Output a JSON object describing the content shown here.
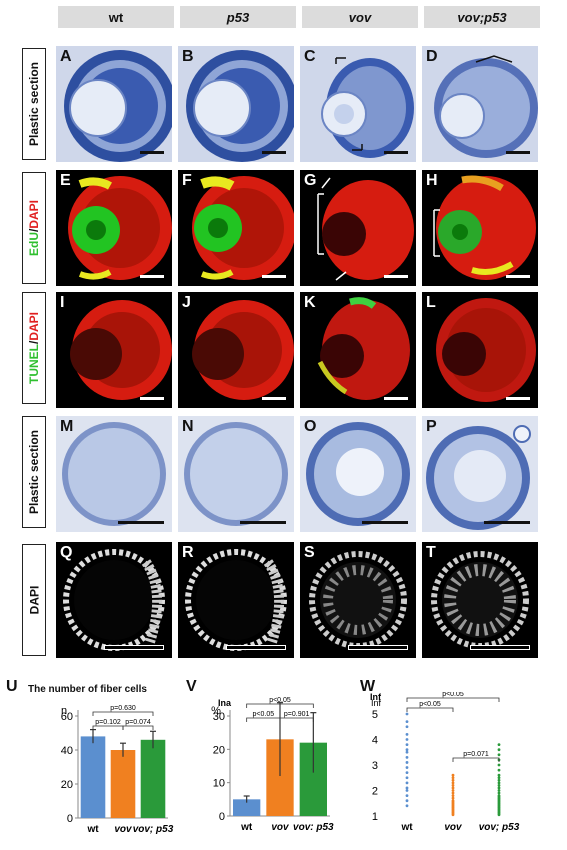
{
  "columns": [
    {
      "label": "wt",
      "italic": false
    },
    {
      "label": "p53",
      "italic": true
    },
    {
      "label": "vov",
      "italic": true
    },
    {
      "label": "vov;p53",
      "italic": true
    }
  ],
  "rows": [
    {
      "label": "Plastic section"
    },
    {
      "label_parts": [
        "EdU",
        "/",
        "DAPI"
      ]
    },
    {
      "label_parts": [
        "TUNEL",
        "/",
        "DAPI"
      ]
    },
    {
      "label": "Plastic section"
    },
    {
      "label": "DAPI"
    }
  ],
  "panels": [
    "A",
    "B",
    "C",
    "D",
    "E",
    "F",
    "G",
    "H",
    "I",
    "J",
    "K",
    "L",
    "M",
    "N",
    "O",
    "P",
    "Q",
    "R",
    "S",
    "T"
  ],
  "label_colors": {
    "edu": "#2fbf2f",
    "tunel": "#2fbf2f",
    "dapi": "#e02020"
  },
  "chart_data": [
    {
      "panel": "U",
      "type": "bar",
      "title": "The number of fiber cells",
      "ylabel": "n",
      "categories": [
        "wt",
        "vov",
        "vov; p53"
      ],
      "values": [
        48,
        40,
        46
      ],
      "errors": [
        4,
        4,
        5
      ],
      "colors": [
        "#5b8fcf",
        "#f08020",
        "#2a9a3a"
      ],
      "ylim": [
        0,
        60
      ],
      "yticks": [
        0,
        20,
        40,
        60
      ],
      "annotations": [
        "p=0.630",
        "p=0.102",
        "p=0.074"
      ]
    },
    {
      "panel": "V",
      "type": "bar",
      "title": "Ina",
      "ylabel": "%",
      "categories": [
        "wt",
        "vov",
        "vov: p53"
      ],
      "values": [
        5,
        23,
        22
      ],
      "errors": [
        1,
        11,
        9
      ],
      "colors": [
        "#5b8fcf",
        "#f08020",
        "#2a9a3a"
      ],
      "ylim": [
        0,
        30
      ],
      "yticks": [
        0,
        10,
        20,
        30
      ],
      "annotations": [
        "p<0.05",
        "p<0.05",
        "p=0.901"
      ]
    },
    {
      "panel": "W",
      "type": "scatter",
      "title": "Inf",
      "ylabel": "Inf",
      "categories": [
        "wt",
        "vov",
        "vov; p53"
      ],
      "colors": [
        "#5b8fcf",
        "#f08020",
        "#2a9a3a"
      ],
      "ylim": [
        1,
        5
      ],
      "yticks": [
        1,
        2,
        3,
        4,
        5
      ],
      "series": [
        {
          "values": [
            1.4,
            1.6,
            1.8,
            2.0,
            2.1,
            2.3,
            2.5,
            2.7,
            2.9,
            3.1,
            3.3,
            3.5,
            3.6,
            3.8,
            4.0,
            4.2,
            4.5,
            4.7,
            5.0
          ]
        },
        {
          "values": [
            1.05,
            1.1,
            1.15,
            1.2,
            1.25,
            1.3,
            1.35,
            1.4,
            1.45,
            1.5,
            1.55,
            1.6,
            1.7,
            1.8,
            1.9,
            2.0,
            2.1,
            2.2,
            2.3,
            2.4,
            2.5,
            2.6
          ]
        },
        {
          "values": [
            1.05,
            1.1,
            1.15,
            1.2,
            1.25,
            1.3,
            1.35,
            1.4,
            1.45,
            1.5,
            1.55,
            1.6,
            1.65,
            1.7,
            1.75,
            1.8,
            1.9,
            2.0,
            2.1,
            2.2,
            2.3,
            2.4,
            2.5,
            2.6,
            2.8,
            3.0,
            3.2,
            3.4,
            3.6,
            3.8
          ]
        }
      ],
      "annotations": [
        "p<0.05",
        "p<0.05",
        "p=0.071"
      ]
    }
  ]
}
